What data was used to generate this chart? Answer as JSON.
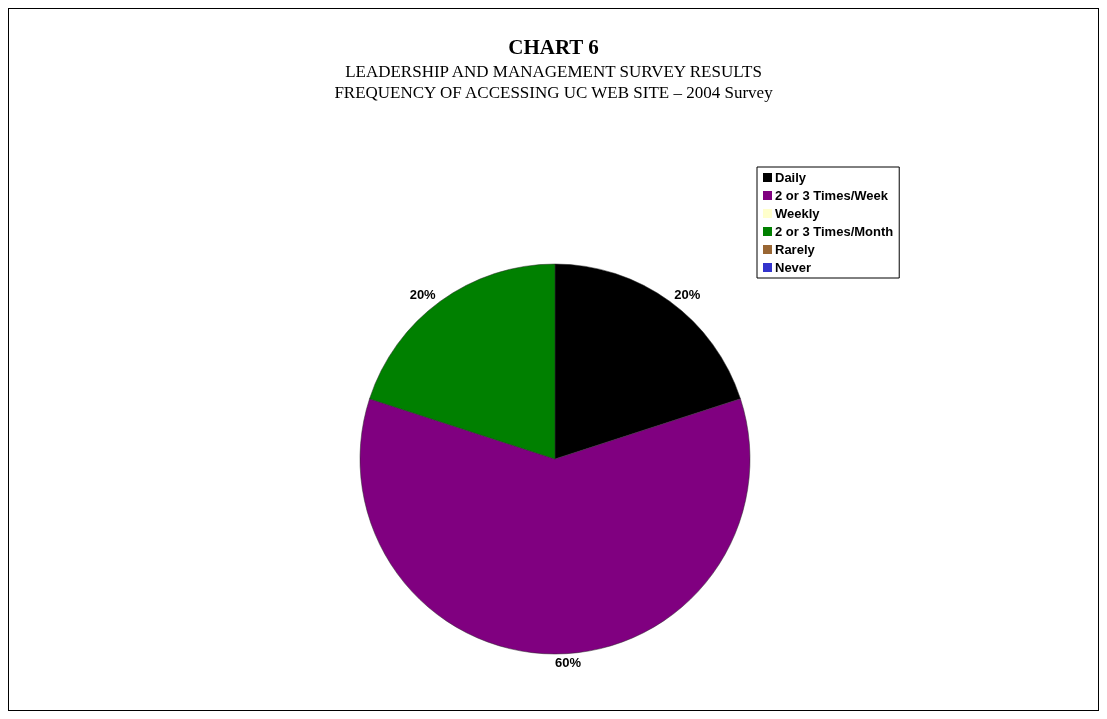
{
  "chart_data": {
    "type": "pie",
    "title": "CHART 6",
    "subtitle": "LEADERSHIP AND MANAGEMENT SURVEY RESULTS\nFREQUENCY OF ACCESSING UC WEB SITE – 2004 Survey",
    "categories": [
      "Daily",
      "2 or 3 Times/Week",
      "Weekly",
      "2 or 3 Times/Month",
      "Rarely",
      "Never"
    ],
    "values": [
      20,
      60,
      0,
      20,
      0,
      0
    ],
    "colors": [
      "#000000",
      "#800080",
      "#ffffcc",
      "#008000",
      "#996633",
      "#3333cc"
    ],
    "value_labels": [
      "20%",
      "60%",
      null,
      "20%",
      null,
      null
    ],
    "legend": "right"
  }
}
